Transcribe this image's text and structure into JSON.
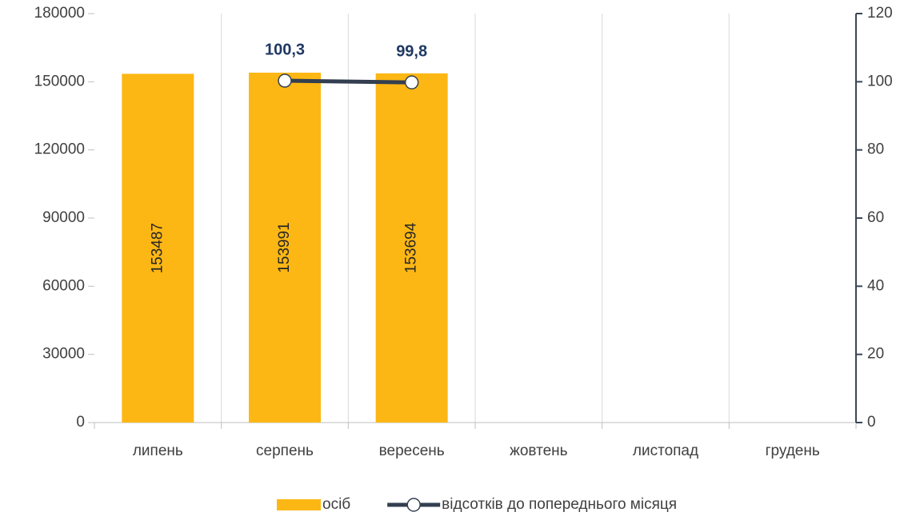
{
  "chart_data": {
    "type": "bar",
    "categories": [
      "липень",
      "серпень",
      "вересень",
      "жовтень",
      "листопад",
      "грудень"
    ],
    "series": [
      {
        "name": "осіб",
        "type": "bar",
        "color": "#fdb714",
        "values": [
          153487,
          153991,
          153694,
          null,
          null,
          null
        ]
      },
      {
        "name": "відсотків до попереднього місяця",
        "type": "line",
        "axis": "y2",
        "color": "#333f50",
        "values": [
          null,
          100.3,
          99.8,
          null,
          null,
          null
        ],
        "value_labels": [
          null,
          "100,3",
          "99,8",
          null,
          null,
          null
        ]
      }
    ],
    "ylim": [
      0,
      180000
    ],
    "yticks": [
      0,
      30000,
      60000,
      90000,
      120000,
      150000,
      180000
    ],
    "y2lim": [
      0,
      120
    ],
    "y2ticks": [
      0,
      20,
      40,
      60,
      80,
      100,
      120
    ],
    "grid": "vertical",
    "legend": "bottom"
  }
}
